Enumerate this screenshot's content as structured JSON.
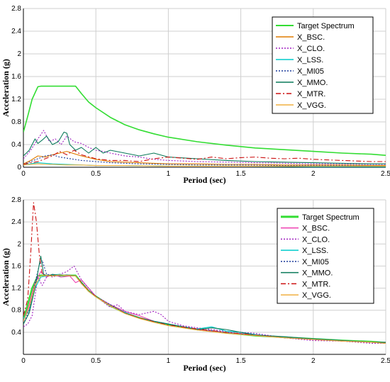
{
  "chart_data": [
    {
      "type": "line",
      "title": "",
      "xlabel": "Period (sec)",
      "ylabel": "Acceleration (g)",
      "xlim": [
        0,
        2.5
      ],
      "ylim": [
        0,
        2.8
      ],
      "xticks": [
        0,
        0.5,
        1,
        1.5,
        2,
        2.5
      ],
      "xtick_labels": [
        "0",
        "0.5",
        "1",
        "1.5",
        "2",
        "2.5"
      ],
      "yticks": [
        0,
        0.4,
        0.8,
        1.2,
        1.6,
        2,
        2.4,
        2.8
      ],
      "ytick_labels": [
        "0",
        "0.4",
        "0.8",
        "1.2",
        "1.6",
        "2",
        "2.4",
        "2.8"
      ],
      "grid": true,
      "legend_position": "top-right",
      "series": [
        {
          "name": "Target Spectrum",
          "color": "#33dd33",
          "dash": "solid",
          "x": [
            0,
            0.03,
            0.06,
            0.1,
            0.12,
            0.2,
            0.3,
            0.36,
            0.4,
            0.45,
            0.5,
            0.6,
            0.7,
            0.8,
            0.9,
            1.0,
            1.2,
            1.4,
            1.6,
            1.8,
            2.0,
            2.2,
            2.4,
            2.5
          ],
          "y": [
            0.62,
            0.9,
            1.2,
            1.42,
            1.43,
            1.43,
            1.43,
            1.43,
            1.3,
            1.15,
            1.05,
            0.88,
            0.75,
            0.66,
            0.59,
            0.53,
            0.45,
            0.39,
            0.34,
            0.31,
            0.28,
            0.25,
            0.23,
            0.21
          ]
        },
        {
          "name": "X_BSC.",
          "color": "#e07b00",
          "dash": "solid",
          "x": [
            0,
            0.05,
            0.1,
            0.15,
            0.2,
            0.25,
            0.3,
            0.35,
            0.4,
            0.5,
            0.6,
            0.7,
            0.8,
            0.9,
            1.0,
            1.2,
            1.4,
            1.6,
            1.8,
            2.0,
            2.2,
            2.4,
            2.5
          ],
          "y": [
            0.06,
            0.12,
            0.2,
            0.18,
            0.22,
            0.25,
            0.28,
            0.24,
            0.2,
            0.14,
            0.1,
            0.09,
            0.08,
            0.07,
            0.06,
            0.06,
            0.05,
            0.05,
            0.04,
            0.04,
            0.04,
            0.03,
            0.03
          ]
        },
        {
          "name": "X_CLO.",
          "color": "#a020c0",
          "dash": "dot",
          "x": [
            0,
            0.05,
            0.1,
            0.14,
            0.18,
            0.22,
            0.26,
            0.3,
            0.35,
            0.4,
            0.45,
            0.5,
            0.55,
            0.6,
            0.7,
            0.8,
            0.9,
            1.0,
            1.2,
            1.4,
            1.6,
            1.8,
            2.0,
            2.2,
            2.4,
            2.5
          ],
          "y": [
            0.15,
            0.3,
            0.5,
            0.65,
            0.45,
            0.5,
            0.4,
            0.55,
            0.45,
            0.42,
            0.35,
            0.3,
            0.28,
            0.25,
            0.2,
            0.18,
            0.14,
            0.12,
            0.1,
            0.09,
            0.08,
            0.07,
            0.06,
            0.06,
            0.05,
            0.05
          ]
        },
        {
          "name": "X_LSS.",
          "color": "#00cccc",
          "dash": "solid",
          "x": [
            0,
            0.05,
            0.1,
            0.15,
            0.2,
            0.3,
            0.4,
            0.5,
            0.7,
            1.0,
            1.5,
            2.0,
            2.5
          ],
          "y": [
            0.04,
            0.06,
            0.08,
            0.07,
            0.06,
            0.05,
            0.04,
            0.03,
            0.03,
            0.02,
            0.02,
            0.01,
            0.01
          ]
        },
        {
          "name": "X_MI05",
          "color": "#1a3a9a",
          "dash": "dot",
          "x": [
            0,
            0.05,
            0.1,
            0.15,
            0.2,
            0.25,
            0.3,
            0.4,
            0.5,
            0.6,
            0.8,
            1.0,
            1.2,
            1.5,
            1.8,
            2.0,
            2.2,
            2.5
          ],
          "y": [
            0.05,
            0.1,
            0.15,
            0.2,
            0.22,
            0.18,
            0.16,
            0.12,
            0.1,
            0.08,
            0.06,
            0.05,
            0.04,
            0.04,
            0.03,
            0.03,
            0.03,
            0.02
          ]
        },
        {
          "name": "X_MMO.",
          "color": "#0a7a5a",
          "dash": "solid",
          "x": [
            0,
            0.04,
            0.08,
            0.1,
            0.13,
            0.16,
            0.2,
            0.24,
            0.28,
            0.3,
            0.32,
            0.36,
            0.4,
            0.45,
            0.5,
            0.55,
            0.6,
            0.7,
            0.8,
            0.9,
            1.0,
            1.2,
            1.4,
            1.6,
            1.8,
            2.0,
            2.2,
            2.4,
            2.5
          ],
          "y": [
            0.2,
            0.3,
            0.5,
            0.42,
            0.48,
            0.55,
            0.4,
            0.45,
            0.62,
            0.6,
            0.4,
            0.3,
            0.35,
            0.25,
            0.35,
            0.25,
            0.3,
            0.25,
            0.2,
            0.25,
            0.18,
            0.15,
            0.12,
            0.1,
            0.09,
            0.08,
            0.07,
            0.06,
            0.06
          ]
        },
        {
          "name": "X_MTR.",
          "color": "#cc1111",
          "dash": "dashdot",
          "x": [
            0,
            0.05,
            0.1,
            0.15,
            0.2,
            0.25,
            0.3,
            0.35,
            0.4,
            0.5,
            0.6,
            0.7,
            0.8,
            0.9,
            1.0,
            1.1,
            1.2,
            1.3,
            1.4,
            1.5,
            1.6,
            1.7,
            1.8,
            1.9,
            2.0,
            2.2,
            2.4,
            2.5
          ],
          "y": [
            0.05,
            0.08,
            0.1,
            0.15,
            0.2,
            0.28,
            0.22,
            0.3,
            0.22,
            0.15,
            0.12,
            0.12,
            0.1,
            0.15,
            0.18,
            0.16,
            0.14,
            0.18,
            0.15,
            0.17,
            0.18,
            0.16,
            0.15,
            0.16,
            0.14,
            0.12,
            0.1,
            0.1
          ]
        },
        {
          "name": "X_VGG.",
          "color": "#f0b040",
          "dash": "solid",
          "x": [
            0,
            0.05,
            0.1,
            0.15,
            0.2,
            0.3,
            0.4,
            0.5,
            0.7,
            1.0,
            1.5,
            2.0,
            2.5
          ],
          "y": [
            0.04,
            0.05,
            0.06,
            0.05,
            0.05,
            0.04,
            0.04,
            0.03,
            0.03,
            0.02,
            0.02,
            0.02,
            0.02
          ]
        }
      ]
    },
    {
      "type": "line",
      "title": "",
      "xlabel": "Period (sec)",
      "ylabel": "Acceleration (g)",
      "xlim": [
        0,
        2.5
      ],
      "ylim": [
        0,
        2.8
      ],
      "xticks": [
        0,
        0.5,
        1,
        1.5,
        2,
        2.5
      ],
      "xtick_labels": [
        "0",
        "0.5",
        "1",
        "1.5",
        "2",
        "2.5"
      ],
      "yticks": [
        0.4,
        0.8,
        1.2,
        1.6,
        2,
        2.4,
        2.8
      ],
      "ytick_labels": [
        "0.4",
        "0.8",
        "1.2",
        "1.6",
        "2",
        "2.4",
        "2.8"
      ],
      "grid": true,
      "legend_position": "top-right",
      "series": [
        {
          "name": "Target Spectrum",
          "color": "#33dd33",
          "dash": "solid",
          "x": [
            0,
            0.03,
            0.06,
            0.1,
            0.12,
            0.2,
            0.3,
            0.36,
            0.4,
            0.45,
            0.5,
            0.6,
            0.7,
            0.8,
            0.9,
            1.0,
            1.2,
            1.4,
            1.6,
            1.8,
            2.0,
            2.2,
            2.4,
            2.5
          ],
          "y": [
            0.62,
            0.9,
            1.2,
            1.42,
            1.43,
            1.43,
            1.43,
            1.43,
            1.3,
            1.15,
            1.05,
            0.88,
            0.75,
            0.66,
            0.59,
            0.53,
            0.45,
            0.39,
            0.34,
            0.31,
            0.28,
            0.25,
            0.23,
            0.21
          ]
        },
        {
          "name": "X_BSC.",
          "color": "#ee3fb0",
          "dash": "solid",
          "x": [
            0,
            0.04,
            0.08,
            0.12,
            0.16,
            0.2,
            0.26,
            0.32,
            0.36,
            0.4,
            0.45,
            0.5,
            0.6,
            0.7,
            0.8,
            0.9,
            1.0,
            1.2,
            1.4,
            1.6,
            1.8,
            2.0,
            2.2,
            2.4,
            2.5
          ],
          "y": [
            0.6,
            0.9,
            1.3,
            1.5,
            1.4,
            1.45,
            1.4,
            1.42,
            1.3,
            1.35,
            1.2,
            1.05,
            0.9,
            0.78,
            0.7,
            0.6,
            0.55,
            0.45,
            0.4,
            0.35,
            0.3,
            0.28,
            0.25,
            0.22,
            0.2
          ]
        },
        {
          "name": "X_CLO.",
          "color": "#a020c0",
          "dash": "dot",
          "x": [
            0,
            0.03,
            0.06,
            0.1,
            0.13,
            0.17,
            0.2,
            0.25,
            0.3,
            0.35,
            0.4,
            0.45,
            0.5,
            0.55,
            0.6,
            0.65,
            0.7,
            0.8,
            0.85,
            0.9,
            0.95,
            1.0,
            1.1,
            1.2,
            1.4,
            1.6,
            1.8,
            2.0,
            2.2,
            2.4,
            2.5
          ],
          "y": [
            0.5,
            0.55,
            0.7,
            1.4,
            1.25,
            1.45,
            1.4,
            1.45,
            1.5,
            1.6,
            1.35,
            1.2,
            1.05,
            0.95,
            0.85,
            0.9,
            0.78,
            0.72,
            0.75,
            0.78,
            0.72,
            0.6,
            0.52,
            0.48,
            0.42,
            0.38,
            0.3,
            0.25,
            0.24,
            0.2,
            0.2
          ]
        },
        {
          "name": "X_LSS.",
          "color": "#00cccc",
          "dash": "solid",
          "x": [
            0,
            0.04,
            0.08,
            0.12,
            0.16,
            0.2,
            0.25,
            0.3,
            0.36,
            0.4,
            0.45,
            0.5,
            0.6,
            0.7,
            0.8,
            0.9,
            1.0,
            1.1,
            1.2,
            1.3,
            1.4,
            1.5,
            1.6,
            1.8,
            2.0,
            2.2,
            2.4,
            2.5
          ],
          "y": [
            0.65,
            0.8,
            1.2,
            1.4,
            1.42,
            1.44,
            1.45,
            1.43,
            1.42,
            1.3,
            1.15,
            1.05,
            0.88,
            0.76,
            0.66,
            0.6,
            0.55,
            0.5,
            0.46,
            0.5,
            0.42,
            0.4,
            0.36,
            0.3,
            0.28,
            0.25,
            0.22,
            0.2
          ]
        },
        {
          "name": "X_MI05",
          "color": "#1a3a9a",
          "dash": "dot",
          "x": [
            0,
            0.04,
            0.08,
            0.11,
            0.13,
            0.16,
            0.2,
            0.25,
            0.3,
            0.36,
            0.4,
            0.45,
            0.5,
            0.6,
            0.7,
            0.8,
            0.9,
            1.0,
            1.2,
            1.4,
            1.6,
            1.8,
            2.0,
            2.2,
            2.4,
            2.5
          ],
          "y": [
            0.55,
            0.8,
            1.3,
            1.62,
            1.7,
            1.45,
            1.43,
            1.44,
            1.43,
            1.42,
            1.28,
            1.15,
            1.05,
            0.9,
            0.75,
            0.66,
            0.6,
            0.55,
            0.46,
            0.4,
            0.35,
            0.3,
            0.27,
            0.24,
            0.22,
            0.2
          ]
        },
        {
          "name": "X_MMO.",
          "color": "#0a7a5a",
          "dash": "solid",
          "x": [
            0,
            0.04,
            0.08,
            0.12,
            0.14,
            0.17,
            0.2,
            0.25,
            0.3,
            0.36,
            0.4,
            0.45,
            0.5,
            0.6,
            0.7,
            0.8,
            0.9,
            1.0,
            1.1,
            1.2,
            1.3,
            1.4,
            1.5,
            1.6,
            1.8,
            2.0,
            2.2,
            2.4,
            2.5
          ],
          "y": [
            0.55,
            0.75,
            1.2,
            1.78,
            1.45,
            1.42,
            1.45,
            1.43,
            1.44,
            1.42,
            1.3,
            1.15,
            1.05,
            0.88,
            0.75,
            0.66,
            0.6,
            0.55,
            0.5,
            0.45,
            0.48,
            0.45,
            0.4,
            0.35,
            0.32,
            0.28,
            0.25,
            0.22,
            0.22
          ]
        },
        {
          "name": "X_MTR.",
          "color": "#cc1111",
          "dash": "dashdot",
          "x": [
            0,
            0.03,
            0.05,
            0.07,
            0.09,
            0.11,
            0.13,
            0.16,
            0.2,
            0.25,
            0.3,
            0.36,
            0.4,
            0.45,
            0.5,
            0.6,
            0.7,
            0.8,
            0.9,
            1.0,
            1.2,
            1.4,
            1.6,
            1.8,
            2.0,
            2.2,
            2.4,
            2.5
          ],
          "y": [
            0.7,
            1.0,
            1.8,
            2.75,
            2.4,
            1.8,
            1.45,
            1.42,
            1.43,
            1.44,
            1.43,
            1.42,
            1.3,
            1.15,
            1.05,
            0.88,
            0.75,
            0.66,
            0.59,
            0.53,
            0.46,
            0.4,
            0.35,
            0.3,
            0.27,
            0.24,
            0.22,
            0.2
          ]
        },
        {
          "name": "X_VGG.",
          "color": "#f0b040",
          "dash": "solid",
          "x": [
            0,
            0.04,
            0.08,
            0.12,
            0.16,
            0.2,
            0.25,
            0.3,
            0.36,
            0.4,
            0.45,
            0.5,
            0.6,
            0.7,
            0.8,
            0.9,
            1.0,
            1.2,
            1.4,
            1.6,
            1.8,
            2.0,
            2.2,
            2.4,
            2.5
          ],
          "y": [
            0.6,
            0.85,
            1.25,
            1.42,
            1.43,
            1.42,
            1.44,
            1.43,
            1.42,
            1.28,
            1.14,
            1.04,
            0.88,
            0.74,
            0.65,
            0.58,
            0.52,
            0.44,
            0.38,
            0.34,
            0.3,
            0.27,
            0.24,
            0.22,
            0.2
          ]
        }
      ]
    }
  ]
}
